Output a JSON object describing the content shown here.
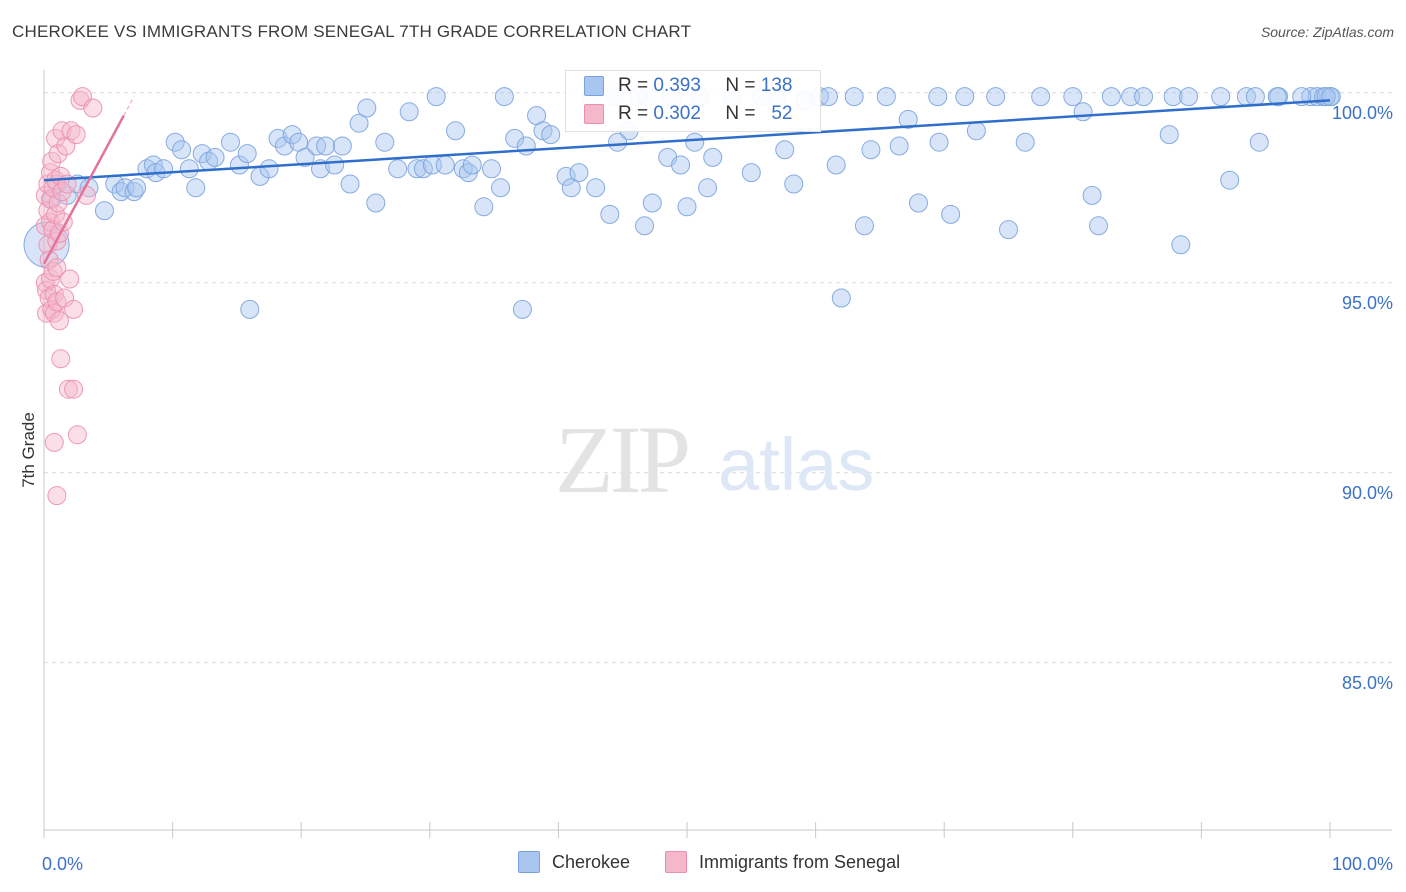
{
  "title": "CHEROKEE VS IMMIGRANTS FROM SENEGAL 7TH GRADE CORRELATION CHART",
  "source": "Source: ZipAtlas.com",
  "watermark": {
    "zip": "ZIP",
    "atlas": "atlas"
  },
  "legend": {
    "series1": {
      "r_label": "R =",
      "r_value": "0.393",
      "n_label": "N =",
      "n_value": "138"
    },
    "series2": {
      "r_label": "R =",
      "r_value": "0.302",
      "n_label": "N =",
      "n_value": "52"
    }
  },
  "bottom_legend": {
    "series1": "Cherokee",
    "series2": "Immigrants from Senegal"
  },
  "colors": {
    "blue_fill": "#a9c6f0",
    "blue_stroke": "#7aa3de",
    "blue_line": "#2f6fcb",
    "pink_fill": "#f5b8cb",
    "pink_stroke": "#ec8fae",
    "pink_line": "#e5729a",
    "tick_label": "#3b72c8",
    "grid": "#d8d8d8"
  },
  "chart_data": {
    "type": "scatter",
    "title": "CHEROKEE VS IMMIGRANTS FROM SENEGAL 7TH GRADE CORRELATION CHART",
    "xlabel": "",
    "ylabel": "7th Grade",
    "xlim": [
      0,
      100
    ],
    "ylim": [
      80.6,
      100.6
    ],
    "x_tick_labels": [
      "0.0%",
      "100.0%"
    ],
    "y_ticks": [
      100,
      95,
      90,
      85
    ],
    "y_tick_labels": [
      "100.0%",
      "95.0%",
      "90.0%",
      "85.0%"
    ],
    "series": [
      {
        "name": "Cherokee",
        "r": 0.393,
        "n": 138,
        "trend": {
          "x0": 0,
          "y0": 97.7,
          "x1": 100,
          "y1": 99.8
        },
        "points": [
          [
            0.2,
            96.0,
            2.5
          ],
          [
            0.6,
            97.2,
            1
          ],
          [
            1.0,
            97.6,
            1
          ],
          [
            1.8,
            97.3,
            1
          ],
          [
            2.6,
            97.6,
            1
          ],
          [
            3.5,
            97.5,
            1
          ],
          [
            4.7,
            96.9,
            1
          ],
          [
            5.5,
            97.6,
            1
          ],
          [
            6.0,
            97.4,
            1
          ],
          [
            6.3,
            97.5,
            1
          ],
          [
            7.0,
            97.4,
            1
          ],
          [
            7.2,
            97.5,
            1
          ],
          [
            8.0,
            98.0,
            1
          ],
          [
            8.5,
            98.1,
            1
          ],
          [
            8.7,
            97.9,
            1
          ],
          [
            9.3,
            98.0,
            1
          ],
          [
            10.2,
            98.7,
            1
          ],
          [
            10.7,
            98.5,
            1
          ],
          [
            11.3,
            98.0,
            1
          ],
          [
            11.8,
            97.5,
            1
          ],
          [
            12.3,
            98.4,
            1
          ],
          [
            12.8,
            98.2,
            1
          ],
          [
            13.3,
            98.3,
            1
          ],
          [
            14.5,
            98.7,
            1
          ],
          [
            15.2,
            98.1,
            1
          ],
          [
            15.8,
            98.4,
            1
          ],
          [
            16.0,
            94.3,
            1
          ],
          [
            16.8,
            97.8,
            1
          ],
          [
            17.5,
            98.0,
            1
          ],
          [
            18.2,
            98.8,
            1
          ],
          [
            18.7,
            98.6,
            1
          ],
          [
            19.3,
            98.9,
            1
          ],
          [
            19.8,
            98.7,
            1
          ],
          [
            20.3,
            98.3,
            1
          ],
          [
            21.2,
            98.6,
            1
          ],
          [
            21.5,
            98.0,
            1
          ],
          [
            21.9,
            98.6,
            1
          ],
          [
            22.6,
            98.1,
            1
          ],
          [
            23.2,
            98.6,
            1
          ],
          [
            23.8,
            97.6,
            1
          ],
          [
            24.5,
            99.2,
            1
          ],
          [
            25.1,
            99.6,
            1
          ],
          [
            25.8,
            97.1,
            1
          ],
          [
            26.5,
            98.7,
            1
          ],
          [
            27.5,
            98.0,
            1
          ],
          [
            28.4,
            99.5,
            1
          ],
          [
            29.0,
            98.0,
            1
          ],
          [
            29.5,
            98.0,
            1
          ],
          [
            30.2,
            98.1,
            1
          ],
          [
            30.5,
            99.9,
            1
          ],
          [
            31.2,
            98.1,
            1
          ],
          [
            32.0,
            99.0,
            1
          ],
          [
            32.6,
            98.0,
            1
          ],
          [
            33.0,
            97.9,
            1
          ],
          [
            33.3,
            98.1,
            1
          ],
          [
            34.2,
            97.0,
            1
          ],
          [
            34.8,
            98.0,
            1
          ],
          [
            35.5,
            97.5,
            1
          ],
          [
            35.8,
            99.9,
            1
          ],
          [
            36.6,
            98.8,
            1
          ],
          [
            37.2,
            94.3,
            1
          ],
          [
            37.5,
            98.6,
            1
          ],
          [
            38.3,
            99.4,
            1
          ],
          [
            38.8,
            99.0,
            1
          ],
          [
            39.4,
            98.9,
            1
          ],
          [
            40.6,
            97.8,
            1
          ],
          [
            41.0,
            97.5,
            1
          ],
          [
            41.6,
            97.9,
            1
          ],
          [
            42.6,
            99.9,
            1
          ],
          [
            42.9,
            97.5,
            1
          ],
          [
            44.0,
            96.8,
            1
          ],
          [
            44.4,
            99.9,
            1
          ],
          [
            44.6,
            98.7,
            1
          ],
          [
            45.5,
            99.0,
            1
          ],
          [
            46.2,
            99.9,
            1
          ],
          [
            46.7,
            96.5,
            1
          ],
          [
            46.9,
            99.9,
            1
          ],
          [
            47.3,
            97.1,
            1
          ],
          [
            48.5,
            98.3,
            1
          ],
          [
            48.8,
            99.9,
            1
          ],
          [
            49.5,
            98.1,
            1
          ],
          [
            50.0,
            97.0,
            1
          ],
          [
            50.6,
            98.7,
            1
          ],
          [
            51.0,
            99.9,
            1
          ],
          [
            51.6,
            97.5,
            1
          ],
          [
            52.0,
            98.3,
            1
          ],
          [
            53.5,
            99.9,
            1
          ],
          [
            55.0,
            97.9,
            1
          ],
          [
            55.8,
            99.9,
            1
          ],
          [
            57.0,
            99.9,
            1
          ],
          [
            57.6,
            98.5,
            1
          ],
          [
            58.3,
            97.6,
            1
          ],
          [
            59.2,
            99.8,
            1
          ],
          [
            60.3,
            99.9,
            1
          ],
          [
            61.0,
            99.9,
            1
          ],
          [
            61.6,
            98.1,
            1
          ],
          [
            62.0,
            94.6,
            1
          ],
          [
            63.0,
            99.9,
            1
          ],
          [
            63.8,
            96.5,
            1
          ],
          [
            64.3,
            98.5,
            1
          ],
          [
            65.5,
            99.9,
            1
          ],
          [
            66.5,
            98.6,
            1
          ],
          [
            67.2,
            99.3,
            1
          ],
          [
            68.0,
            97.1,
            1
          ],
          [
            69.5,
            99.9,
            1
          ],
          [
            69.6,
            98.7,
            1
          ],
          [
            70.5,
            96.8,
            1
          ],
          [
            71.6,
            99.9,
            1
          ],
          [
            72.5,
            99.0,
            1
          ],
          [
            74.0,
            99.9,
            1
          ],
          [
            75.0,
            96.4,
            1
          ],
          [
            76.3,
            98.7,
            1
          ],
          [
            77.5,
            99.9,
            1
          ],
          [
            80.0,
            99.9,
            1
          ],
          [
            80.8,
            99.5,
            1
          ],
          [
            81.5,
            97.3,
            1
          ],
          [
            82.0,
            96.5,
            1
          ],
          [
            83.0,
            99.9,
            1
          ],
          [
            84.5,
            99.9,
            1
          ],
          [
            85.5,
            99.9,
            1
          ],
          [
            87.5,
            98.9,
            1
          ],
          [
            87.8,
            99.9,
            1
          ],
          [
            88.4,
            96.0,
            1
          ],
          [
            89.0,
            99.9,
            1
          ],
          [
            92.2,
            97.7,
            1
          ],
          [
            93.5,
            99.9,
            1
          ],
          [
            94.2,
            99.9,
            1
          ],
          [
            94.5,
            98.7,
            1
          ],
          [
            96.0,
            99.9,
            1
          ],
          [
            98.5,
            99.9,
            1
          ],
          [
            99.0,
            99.9,
            1
          ],
          [
            99.5,
            99.9,
            1
          ],
          [
            100.0,
            99.9,
            1
          ],
          [
            100.1,
            99.9,
            1
          ],
          [
            99.7,
            99.9,
            1
          ],
          [
            97.8,
            99.9,
            1
          ],
          [
            95.9,
            99.9,
            1
          ],
          [
            91.5,
            99.9,
            1
          ]
        ]
      },
      {
        "name": "Immigrants from Senegal",
        "r": 0.302,
        "n": 52,
        "trend": {
          "x0": 0,
          "y0": 95.5,
          "x1": 6.2,
          "y1": 99.4,
          "dash_x1": 7.0,
          "dash_y1": 99.9
        },
        "points": [
          [
            0.1,
            97.3,
            1
          ],
          [
            0.1,
            96.5,
            1
          ],
          [
            0.1,
            95.0,
            1
          ],
          [
            0.2,
            94.8,
            1
          ],
          [
            0.2,
            94.2,
            1
          ],
          [
            0.3,
            97.6,
            1
          ],
          [
            0.3,
            96.9,
            1
          ],
          [
            0.3,
            96.0,
            1
          ],
          [
            0.4,
            95.6,
            1
          ],
          [
            0.4,
            94.6,
            1
          ],
          [
            0.5,
            97.9,
            1
          ],
          [
            0.5,
            97.2,
            1
          ],
          [
            0.5,
            96.6,
            1
          ],
          [
            0.5,
            95.1,
            1
          ],
          [
            0.6,
            94.3,
            1
          ],
          [
            0.6,
            98.2,
            1
          ],
          [
            0.7,
            97.5,
            1
          ],
          [
            0.7,
            96.4,
            1
          ],
          [
            0.7,
            95.3,
            1
          ],
          [
            0.8,
            94.7,
            1
          ],
          [
            0.8,
            94.2,
            1
          ],
          [
            0.9,
            98.8,
            1
          ],
          [
            0.9,
            97.7,
            1
          ],
          [
            0.9,
            96.8,
            1
          ],
          [
            1.0,
            96.1,
            1
          ],
          [
            1.0,
            95.4,
            1
          ],
          [
            1.0,
            94.5,
            1
          ],
          [
            1.1,
            98.4,
            1
          ],
          [
            1.1,
            97.1,
            1
          ],
          [
            1.2,
            96.3,
            1
          ],
          [
            1.2,
            94.0,
            1
          ],
          [
            1.3,
            97.8,
            1
          ],
          [
            1.3,
            93.0,
            1
          ],
          [
            1.4,
            99.0,
            1
          ],
          [
            1.4,
            97.4,
            1
          ],
          [
            1.5,
            96.6,
            1
          ],
          [
            1.6,
            94.6,
            1
          ],
          [
            1.7,
            98.6,
            1
          ],
          [
            1.8,
            97.6,
            1
          ],
          [
            1.9,
            92.2,
            1
          ],
          [
            2.0,
            95.1,
            1
          ],
          [
            2.1,
            99.0,
            1
          ],
          [
            2.3,
            94.3,
            1
          ],
          [
            2.3,
            92.2,
            1
          ],
          [
            2.5,
            98.9,
            1
          ],
          [
            2.6,
            91.0,
            1
          ],
          [
            2.8,
            99.8,
            1
          ],
          [
            3.0,
            99.9,
            1
          ],
          [
            3.3,
            97.3,
            1
          ],
          [
            3.8,
            99.6,
            1
          ],
          [
            0.8,
            90.8,
            1
          ],
          [
            1.0,
            89.4,
            1
          ]
        ]
      }
    ]
  }
}
